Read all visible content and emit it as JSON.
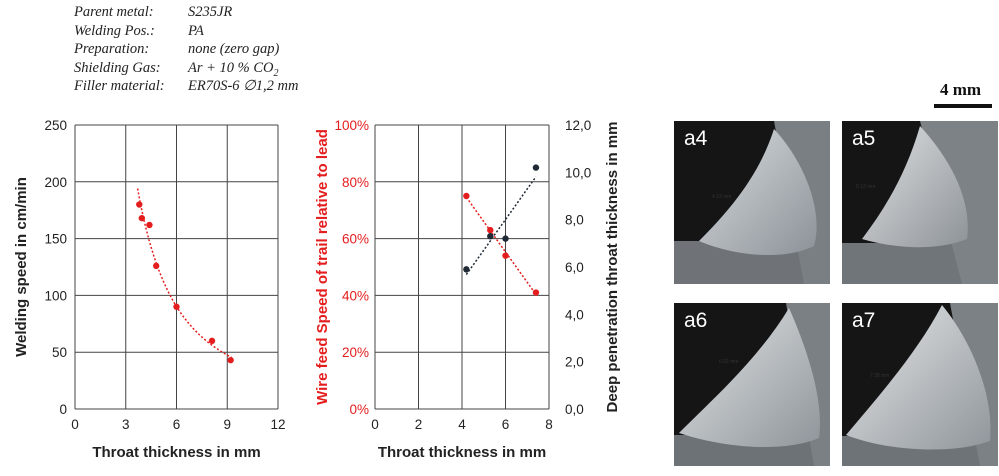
{
  "parameters": [
    {
      "label": "Parent metal:",
      "value": "S235JR"
    },
    {
      "label": "Welding Pos.:",
      "value": "PA"
    },
    {
      "label": "Preparation:",
      "value": "none (zero gap)"
    },
    {
      "label": "Shielding Gas:",
      "value": "Ar + 10 % CO",
      "sub": "2"
    },
    {
      "label": "Filler material:",
      "value": "ER70S-6 ∅1,2 mm"
    }
  ],
  "scale_bar": {
    "label": "4 mm"
  },
  "micrographs": [
    {
      "label": "a4",
      "measure": "4.22 mm"
    },
    {
      "label": "a5",
      "measure": "5.12 mm"
    },
    {
      "label": "a6",
      "measure": "6.02 mm"
    },
    {
      "label": "a7",
      "measure": "7.38 mm"
    }
  ],
  "colors": {
    "red": "#e41e1e",
    "dark": "#1f2a36"
  },
  "chart_data": [
    {
      "type": "scatter",
      "xlabel": "Throat thickness in mm",
      "ylabel": "Welding speed in cm/min",
      "xlim": [
        0,
        12
      ],
      "ylim": [
        0,
        250
      ],
      "xticks": [
        "0",
        "3",
        "6",
        "9",
        "12"
      ],
      "yticks": [
        "0",
        "50",
        "100",
        "150",
        "200",
        "250"
      ],
      "grid": true,
      "series": [
        {
          "color": "#e41e1e",
          "trendline": "power",
          "x": [
            3.8,
            3.95,
            4.4,
            4.8,
            6.0,
            8.1,
            9.2
          ],
          "y": [
            180,
            168,
            162,
            126,
            90,
            60,
            43
          ]
        }
      ]
    },
    {
      "type": "scatter",
      "xlabel": "Throat thickness in mm",
      "ylabel_left": "Wire feed Speed of trail relative to lead",
      "ylabel_right": "Deep penetration throat thickness in mm",
      "xlim": [
        0,
        8
      ],
      "ylim_left": [
        0,
        100
      ],
      "ylim_right": [
        0,
        12
      ],
      "xticks": [
        "0",
        "2",
        "4",
        "6",
        "8"
      ],
      "yticks_left": [
        "0%",
        "20%",
        "40%",
        "60%",
        "80%",
        "100%"
      ],
      "yticks_right": [
        "0,0",
        "2,0",
        "4,0",
        "6,0",
        "8,0",
        "10,0",
        "12,0"
      ],
      "grid": true,
      "series": [
        {
          "color": "#e41e1e",
          "axis": "left",
          "trendline": "linear",
          "x": [
            4.2,
            5.3,
            6.0,
            7.4
          ],
          "y": [
            75,
            63,
            54,
            41
          ]
        },
        {
          "color": "#1f2a36",
          "axis": "right",
          "trendline": "linear",
          "x": [
            4.2,
            5.3,
            6.0,
            7.4
          ],
          "y": [
            5.9,
            7.3,
            7.2,
            10.2
          ]
        }
      ]
    }
  ]
}
